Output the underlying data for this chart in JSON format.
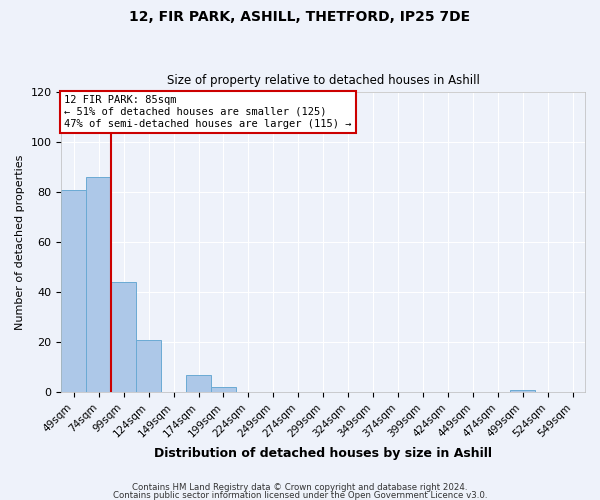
{
  "title": "12, FIR PARK, ASHILL, THETFORD, IP25 7DE",
  "subtitle": "Size of property relative to detached houses in Ashill",
  "xlabel": "Distribution of detached houses by size in Ashill",
  "ylabel": "Number of detached properties",
  "footnote1": "Contains HM Land Registry data © Crown copyright and database right 2024.",
  "footnote2": "Contains public sector information licensed under the Open Government Licence v3.0.",
  "bin_labels": [
    "49sqm",
    "74sqm",
    "99sqm",
    "124sqm",
    "149sqm",
    "174sqm",
    "199sqm",
    "224sqm",
    "249sqm",
    "274sqm",
    "299sqm",
    "324sqm",
    "349sqm",
    "374sqm",
    "399sqm",
    "424sqm",
    "449sqm",
    "474sqm",
    "499sqm",
    "524sqm",
    "549sqm"
  ],
  "bin_values": [
    81,
    86,
    44,
    21,
    0,
    7,
    2,
    0,
    0,
    0,
    0,
    0,
    0,
    0,
    0,
    0,
    0,
    0,
    1,
    0,
    0
  ],
  "bar_color": "#adc8e8",
  "bar_edge_color": "#6aaad4",
  "vline_color": "#cc0000",
  "annotation_title": "12 FIR PARK: 85sqm",
  "annotation_line1": "← 51% of detached houses are smaller (125)",
  "annotation_line2": "47% of semi-detached houses are larger (115) →",
  "annotation_box_color": "#cc0000",
  "ylim": [
    0,
    120
  ],
  "yticks": [
    0,
    20,
    40,
    60,
    80,
    100,
    120
  ],
  "background_color": "#eef2fa",
  "plot_background": "#eef2fa",
  "grid_color": "#ffffff"
}
